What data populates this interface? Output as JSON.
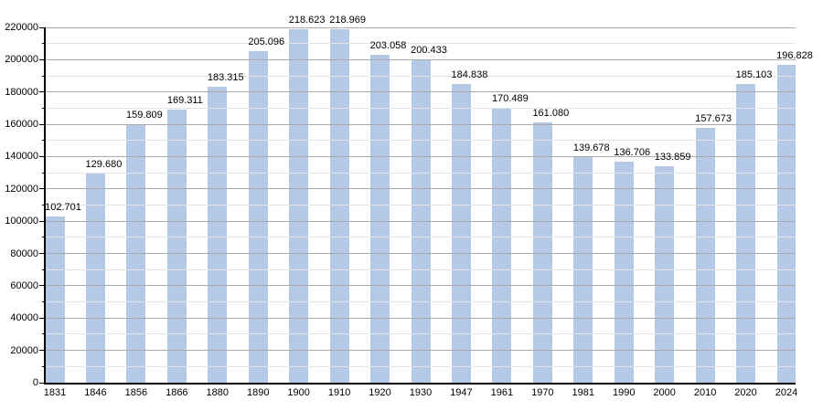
{
  "chart_data": {
    "type": "bar",
    "title": "",
    "xlabel": "",
    "ylabel": "",
    "categories": [
      "1831",
      "1846",
      "1856",
      "1866",
      "1880",
      "1890",
      "1900",
      "1910",
      "1920",
      "1930",
      "1947",
      "1961",
      "1970",
      "1981",
      "1990",
      "2000",
      "2010",
      "2020",
      "2024"
    ],
    "values": [
      102701,
      129680,
      159809,
      169311,
      183315,
      205096,
      218623,
      218969,
      203058,
      200433,
      184838,
      170489,
      161080,
      139678,
      136706,
      133859,
      157673,
      185103,
      196828
    ],
    "value_labels": [
      "102.701",
      "129.680",
      "159.809",
      "169.311",
      "183.315",
      "205.096",
      "218.623",
      "218.969",
      "203.058",
      "200.433",
      "184.838",
      "170.489",
      "161.080",
      "139.678",
      "136.706",
      "133.859",
      "157.673",
      "185.103",
      "196.828"
    ],
    "y_tick_labels": [
      "0",
      "20000",
      "40000",
      "60000",
      "80000",
      "100000",
      "120000",
      "140000",
      "160000",
      "180000",
      "200000",
      "220000"
    ],
    "ylim": [
      0,
      220000
    ],
    "ytick_step": 20000,
    "minor_ytick_step": 10000,
    "grid": true,
    "legend": "none",
    "colors": {
      "bar_fill": "#b3c9e5",
      "major_grid": "#a9a9a9",
      "minor_grid": "#e4e4e4",
      "axis": "#000000",
      "text": "#000000",
      "background": "#ffffff"
    }
  }
}
